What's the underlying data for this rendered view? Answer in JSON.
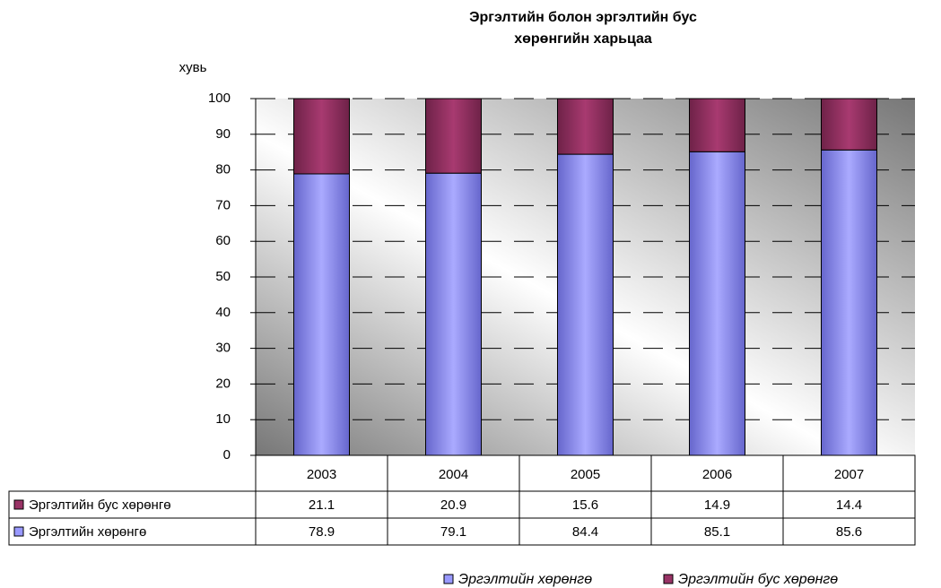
{
  "chart_data": {
    "type": "stacked_bar",
    "title": [
      "Эргэлтийн болон эргэлтийн бус",
      "хөрөнгийн харьцаа"
    ],
    "y_label": "хувь",
    "categories": [
      "2003",
      "2004",
      "2005",
      "2006",
      "2007"
    ],
    "series": [
      {
        "name": "Эргэлтийн хөрөнгө",
        "color": "#9999ff",
        "values": [
          78.9,
          79.1,
          84.4,
          85.1,
          85.6
        ]
      },
      {
        "name": "Эргэлтийн бус хөрөнгө",
        "color": "#993366",
        "values": [
          21.1,
          20.9,
          15.6,
          14.9,
          14.4
        ]
      }
    ],
    "ylim": [
      0,
      100
    ],
    "yticks": [
      0,
      10,
      20,
      30,
      40,
      50,
      60,
      70,
      80,
      90,
      100
    ],
    "grid": true
  }
}
